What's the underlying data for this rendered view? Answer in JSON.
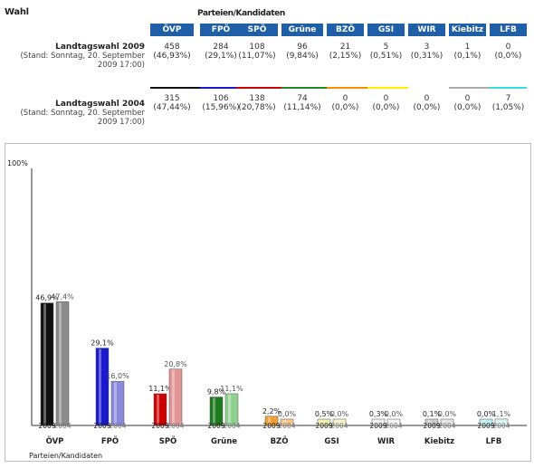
{
  "header": {
    "wahl": "Wahl",
    "parteien": "Parteien/Kandidaten"
  },
  "parties": [
    {
      "name": "ÖVP",
      "color": "#111111"
    },
    {
      "name": "FPÖ",
      "color": "#1a1acc"
    },
    {
      "name": "SPÖ",
      "color": "#d40000"
    },
    {
      "name": "Grüne",
      "color": "#1e8c1e"
    },
    {
      "name": "BZÖ",
      "color": "#ff8c00"
    },
    {
      "name": "GSI",
      "color": "#ffee00"
    },
    {
      "name": "WIR",
      "color": "#ffffff"
    },
    {
      "name": "Kiebitz",
      "color": "#aaaaaa"
    },
    {
      "name": "LFB",
      "color": "#33dddd"
    }
  ],
  "rows": [
    {
      "title": "Landtagswahl 2009",
      "stand": "(Stand: Sonntag, 20. September",
      "time": "2009 17:00)",
      "votes": [
        "458",
        "284",
        "108",
        "96",
        "21",
        "5",
        "3",
        "1",
        "0"
      ],
      "pct": [
        "(46,93%)",
        "(29,1%)",
        "(11,07%)",
        "(9,84%)",
        "(2,15%)",
        "(0,51%)",
        "(0,31%)",
        "(0,1%)",
        "(0,0%)"
      ]
    },
    {
      "title": "Landtagswahl 2004",
      "stand": "(Stand: Sonntag, 20. September",
      "time": "2009 17:00)",
      "votes": [
        "315",
        "106",
        "138",
        "74",
        "0",
        "0",
        "0",
        "0",
        "7"
      ],
      "pct": [
        "(47,44%)",
        "(15,96%)",
        "(20,78%)",
        "(11,14%)",
        "(0,0%)",
        "(0,0%)",
        "(0,0%)",
        "(0,0%)",
        "(1,05%)"
      ]
    }
  ],
  "chart_data": {
    "type": "bar",
    "categories": [
      "ÖVP",
      "FPÖ",
      "SPÖ",
      "Grüne",
      "BZÖ",
      "GSI",
      "WIR",
      "Kiebitz",
      "LFB"
    ],
    "series": [
      {
        "name": "2009",
        "values": [
          46.9,
          29.1,
          11.1,
          9.8,
          2.2,
          0.5,
          0.3,
          0.1,
          0.0
        ],
        "labels": [
          "46,9%",
          "29,1%",
          "11,1%",
          "9,8%",
          "2,2%",
          "0,5%",
          "0,3%",
          "0,1%",
          "0,0%"
        ],
        "colors": [
          "#111111",
          "#1a1acc",
          "#cc0000",
          "#1e7a1e",
          "#f0a030",
          "#eeeeaa",
          "#f0f0f0",
          "#cccccc",
          "#bfeeee"
        ]
      },
      {
        "name": "2004",
        "values": [
          47.4,
          16.0,
          20.8,
          11.1,
          0.0,
          0.0,
          0.0,
          0.0,
          1.1
        ],
        "labels": [
          "47,4%",
          "16,0%",
          "20,8%",
          "11,1%",
          "0,0%",
          "0,0%",
          "0,0%",
          "0,0%",
          "1,1%"
        ],
        "colors": [
          "#8c8c8c",
          "#8888dd",
          "#e29595",
          "#8fd08f",
          "#f4c88a",
          "#f4f2c8",
          "#f4f4f4",
          "#e4e4e4",
          "#d9f2f2"
        ]
      }
    ],
    "ylabel_top": "100%",
    "xlabel": "Parteien/Kandidaten",
    "ylim": [
      0,
      100
    ]
  }
}
